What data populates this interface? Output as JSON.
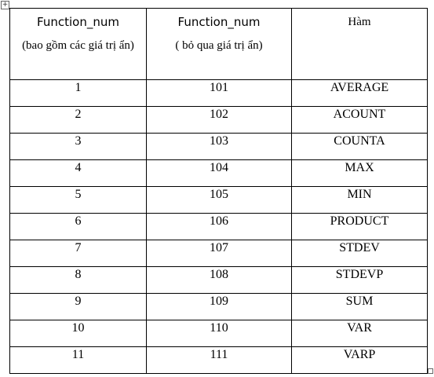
{
  "table": {
    "header": [
      [
        "Function_num",
        "(bao gồm các giá trị ẩn)"
      ],
      [
        "Function_num",
        "( bỏ qua giá trị ẩn)"
      ],
      [
        "Hàm"
      ]
    ],
    "rows": [
      [
        1,
        101,
        "AVERAGE"
      ],
      [
        2,
        102,
        "ACOUNT"
      ],
      [
        3,
        103,
        "COUNTA"
      ],
      [
        4,
        104,
        "MAX"
      ],
      [
        5,
        105,
        "MIN"
      ],
      [
        6,
        106,
        "PRODUCT"
      ],
      [
        7,
        107,
        "STDEV"
      ],
      [
        8,
        108,
        "STDEVP"
      ],
      [
        9,
        109,
        "SUM"
      ],
      [
        10,
        110,
        "VAR"
      ],
      [
        11,
        111,
        "VARP"
      ]
    ]
  }
}
